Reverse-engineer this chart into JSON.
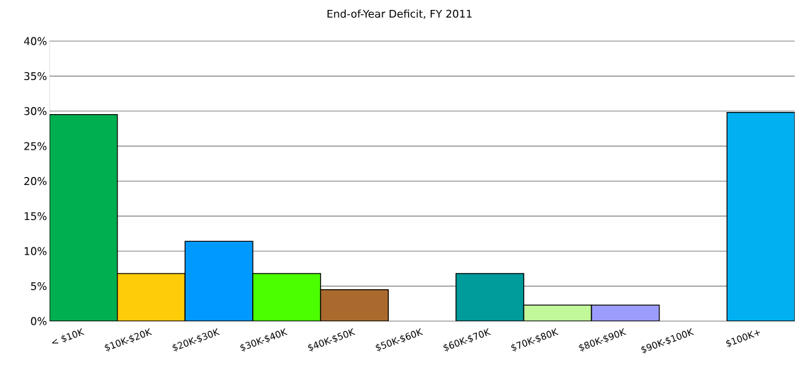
{
  "chart_data": {
    "type": "bar",
    "title": "End-of-Year Deficit, FY 2011",
    "categories": [
      "< $10K",
      "$10K-$20K",
      "$20K-$30K",
      "$30K-$40K",
      "$40K-$50K",
      "$50K-$60K",
      "$60K-$70K",
      "$70K-$80K",
      "$80K-$90K",
      "$90K-$100K",
      "$100K+"
    ],
    "values": [
      29.5,
      6.8,
      11.4,
      6.8,
      4.5,
      0,
      6.8,
      2.3,
      2.3,
      0,
      29.8
    ],
    "colors": [
      "#00b050",
      "#ffcc0a",
      "#0099ff",
      "#4cff00",
      "#aa6a2e",
      null,
      "#009b9b",
      "#c0f89a",
      "#9c9cff",
      null,
      "#00b0f0"
    ],
    "ylim": [
      0,
      40
    ],
    "yticks": [
      {
        "value": 0,
        "label": "0%"
      },
      {
        "value": 5,
        "label": "5%"
      },
      {
        "value": 10,
        "label": "10%"
      },
      {
        "value": 15,
        "label": "15%"
      },
      {
        "value": 20,
        "label": "20%"
      },
      {
        "value": 25,
        "label": "25%"
      },
      {
        "value": 30,
        "label": "30%"
      },
      {
        "value": 35,
        "label": "35%"
      },
      {
        "value": 40,
        "label": "40%"
      }
    ],
    "grid": "y"
  }
}
